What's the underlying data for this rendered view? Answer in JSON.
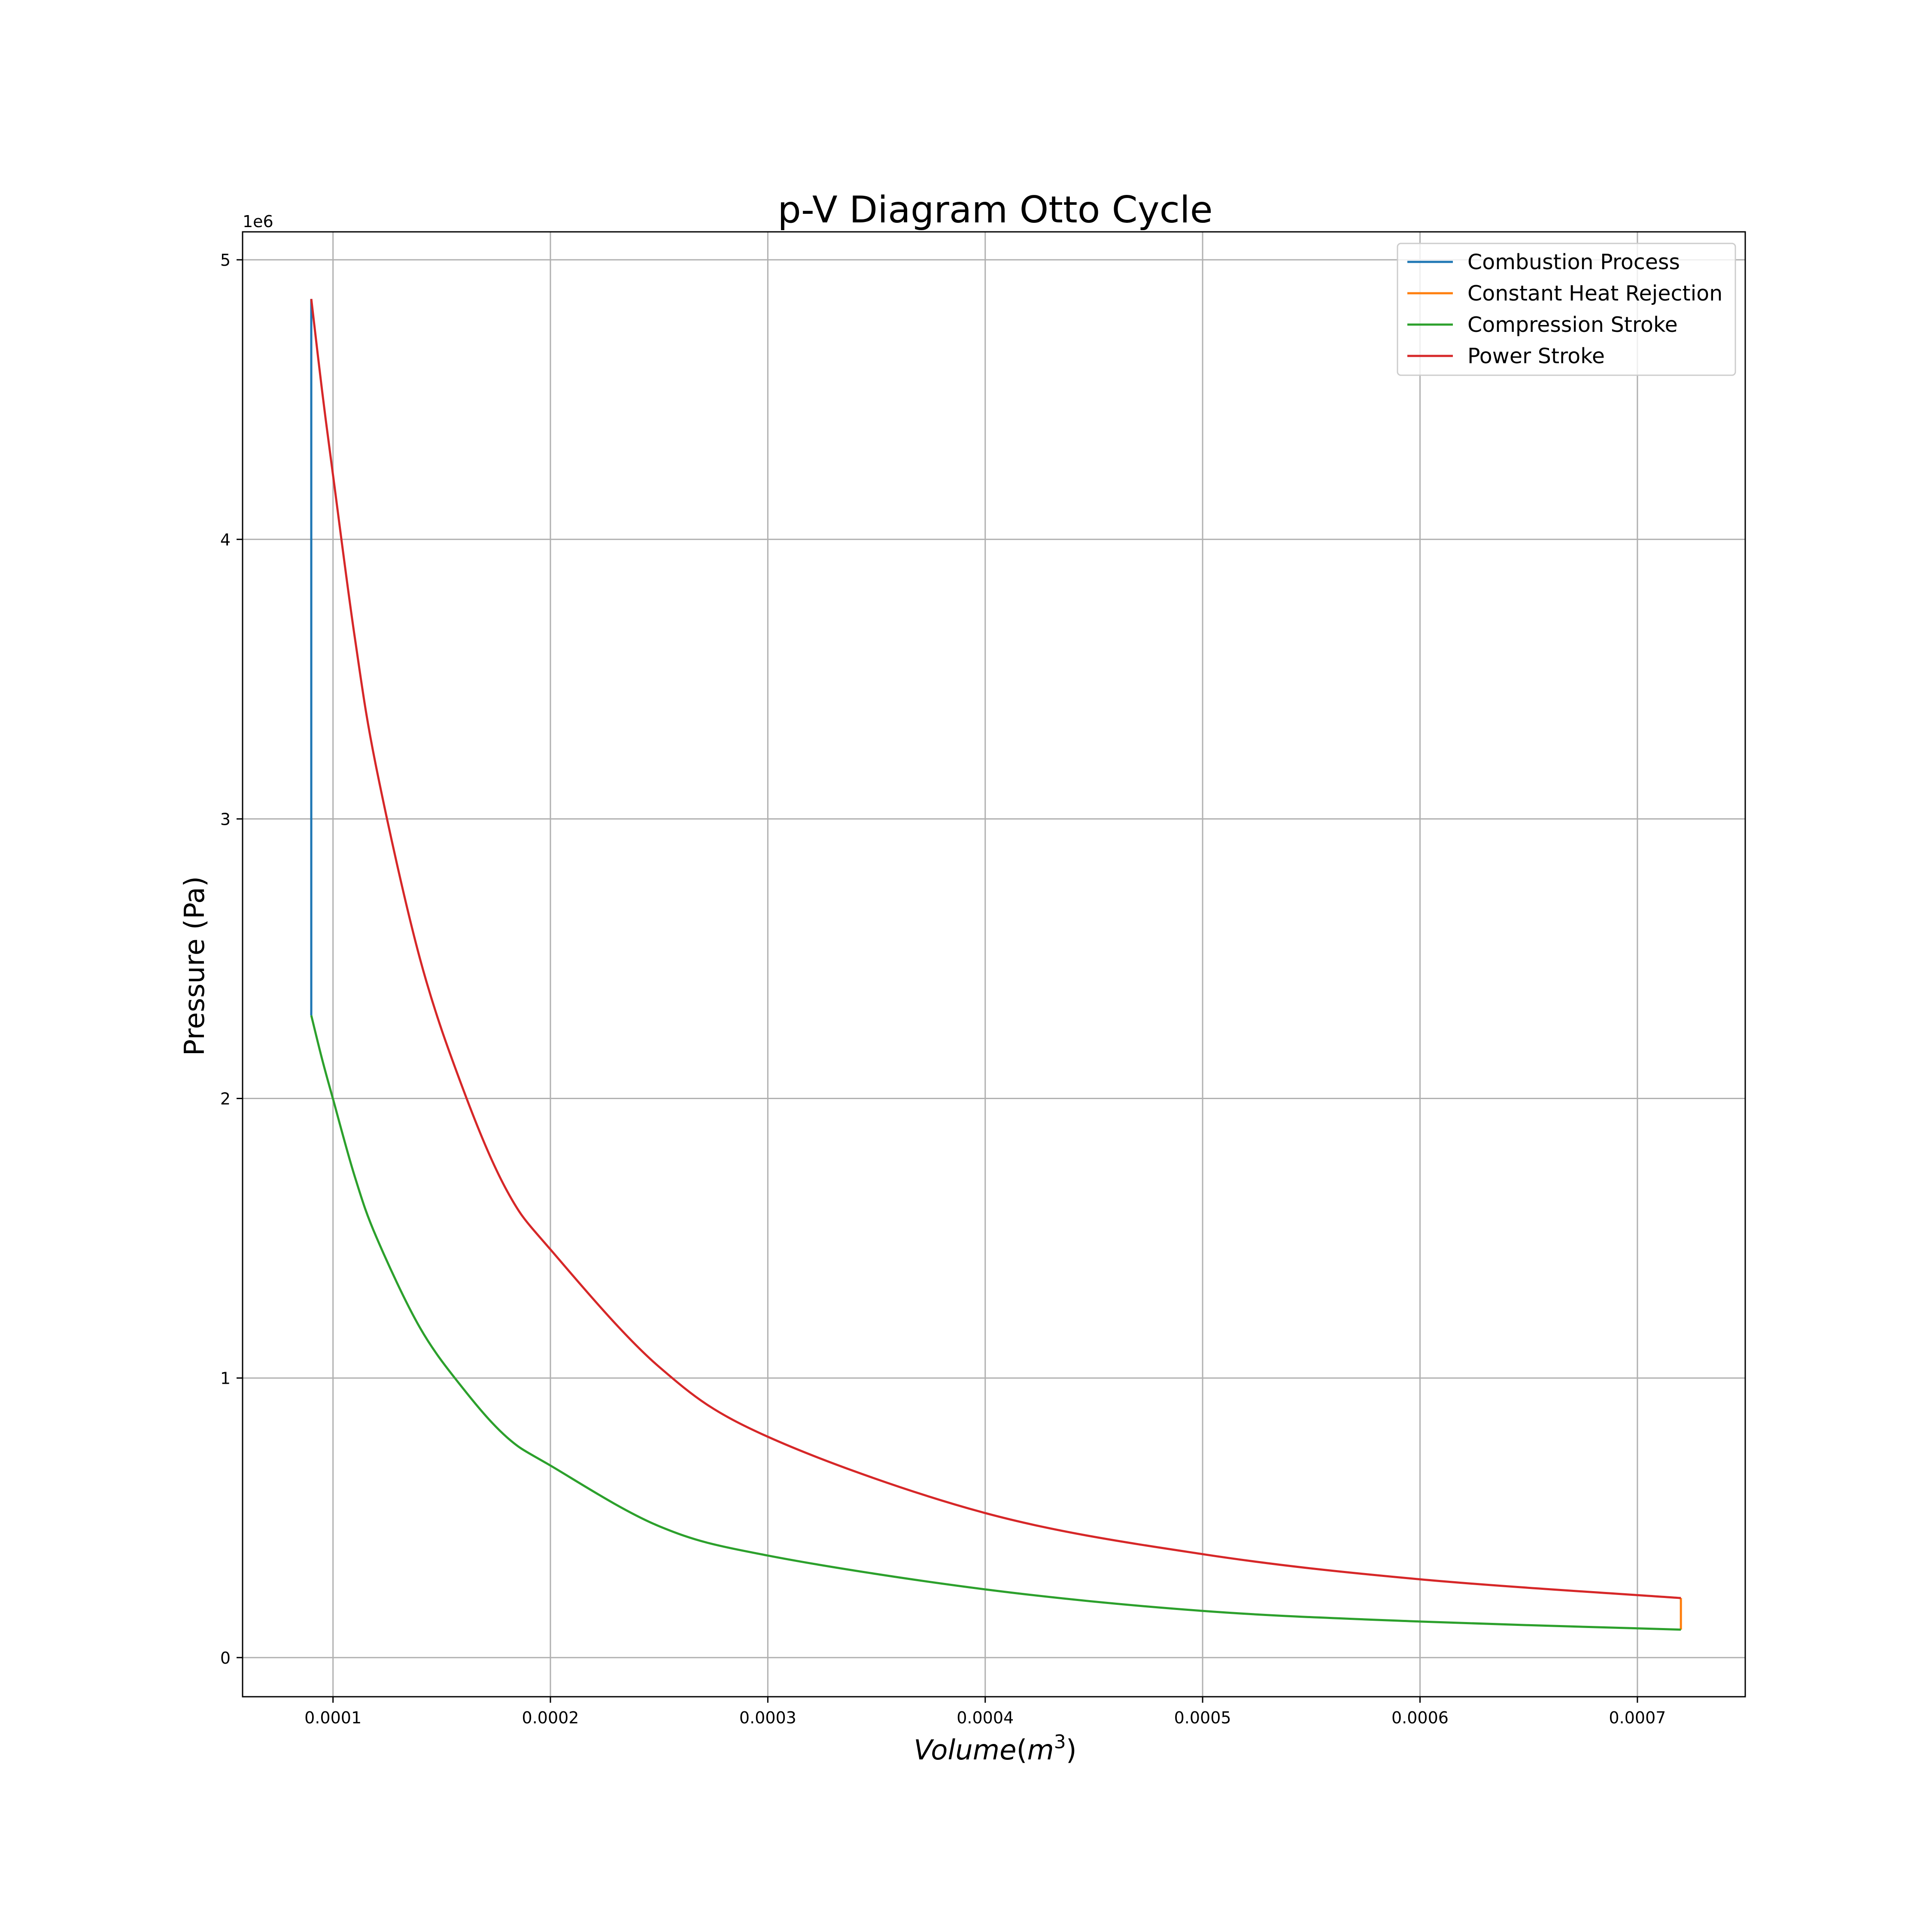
{
  "chart_data": {
    "type": "line",
    "title": "p-V Diagram Otto Cycle",
    "xlabel": "Volume",
    "xlabel_unit_base": "m",
    "xlabel_unit_exp": "3",
    "ylabel": "Pressure (Pa)",
    "y_offset_label": "1e6",
    "xlim": [
      5.84e-05,
      0.0007496
    ],
    "ylim": [
      -140000,
      5100000
    ],
    "x_ticks": [
      0.0001,
      0.0002,
      0.0003,
      0.0004,
      0.0005,
      0.0006,
      0.0007
    ],
    "x_tick_labels": [
      "0.0001",
      "0.0002",
      "0.0003",
      "0.0004",
      "0.0005",
      "0.0006",
      "0.0007"
    ],
    "y_ticks": [
      0,
      1000000,
      2000000,
      3000000,
      4000000,
      5000000
    ],
    "y_tick_labels": [
      "0",
      "1",
      "2",
      "3",
      "4",
      "5"
    ],
    "grid": true,
    "legend_position": "top-right",
    "series": [
      {
        "name": "Combustion Process",
        "color": "#1f77b4",
        "x": [
          9e-05,
          9e-05
        ],
        "y": [
          2297000,
          4860000
        ]
      },
      {
        "name": "Constant Heat Rejection",
        "color": "#ff7f0e",
        "x": [
          0.00072,
          0.00072
        ],
        "y": [
          213000,
          100000
        ]
      },
      {
        "name": "Compression Stroke",
        "color": "#2ca02c",
        "x": [
          0.00072,
          0.0006,
          0.0005,
          0.0004,
          0.0003,
          0.00025,
          0.0002,
          0.00018,
          0.00016,
          0.00014,
          0.00012,
          0.00011,
          0.0001,
          9.5e-05,
          9e-05
        ],
        "y": [
          100000,
          129000,
          167000,
          244000,
          365000,
          470000,
          687000,
          788000,
          961000,
          1180000,
          1503000,
          1721000,
          1998000,
          2140000,
          2297000
        ]
      },
      {
        "name": "Power Stroke",
        "color": "#d62728",
        "x": [
          9e-05,
          9.5e-05,
          0.0001,
          0.00011,
          0.00012,
          0.00014,
          0.00016,
          0.00018,
          0.0002,
          0.00025,
          0.0003,
          0.0004,
          0.0005,
          0.0006,
          0.00072
        ],
        "y": [
          4860000,
          4530000,
          4230000,
          3650000,
          3180000,
          2500000,
          2030000,
          1670000,
          1460000,
          1040000,
          790000,
          517000,
          370000,
          280000,
          213000
        ]
      }
    ]
  }
}
